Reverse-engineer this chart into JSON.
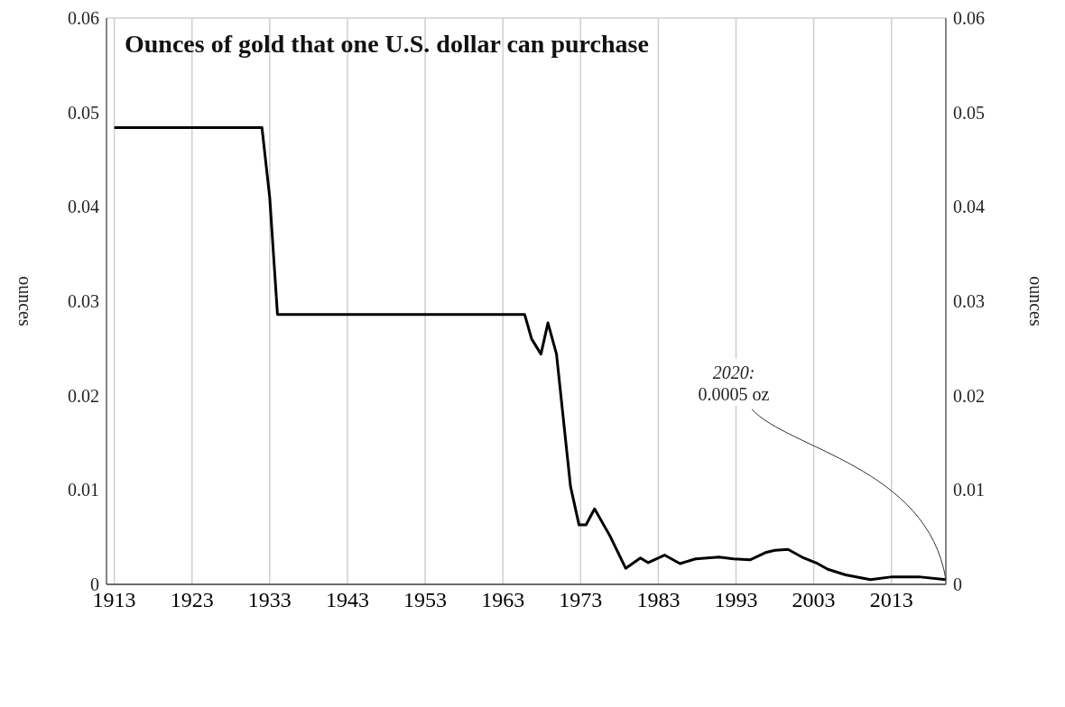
{
  "chart_data": {
    "type": "line",
    "title": "Ounces of gold that one U.S. dollar can purchase",
    "ylabel": "ounces",
    "y2label": "ounces",
    "x": [
      1913,
      1920,
      1932,
      1933,
      1934,
      1940,
      1950,
      1960,
      1965.8,
      1966.7,
      1967.9,
      1968.8,
      1969.9,
      1971.7,
      1972.8,
      1973.7,
      1974.8,
      1976.8,
      1978.8,
      1980.7,
      1981.7,
      1983.8,
      1985.8,
      1987.8,
      1990.8,
      1992.7,
      1994.8,
      1996.9,
      1998,
      1999.7,
      2001.7,
      2003.5,
      2004.8,
      2007.1,
      2010.3,
      2013.1,
      2016.5,
      2020
    ],
    "series": [
      {
        "color": "#000000",
        "values": [
          0.0484,
          0.0484,
          0.0484,
          0.041,
          0.0286,
          0.0286,
          0.0286,
          0.0286,
          0.0286,
          0.026,
          0.0244,
          0.0277,
          0.0244,
          0.0104,
          0.0063,
          0.0063,
          0.008,
          0.0051,
          0.0017,
          0.0028,
          0.0023,
          0.0031,
          0.0022,
          0.0027,
          0.0029,
          0.0027,
          0.0026,
          0.0034,
          0.0036,
          0.0037,
          0.0028,
          0.0022,
          0.0016,
          0.001,
          0.0005,
          0.0008,
          0.0008,
          0.0005
        ]
      }
    ],
    "xlim": [
      1912,
      2020
    ],
    "xticks": [
      1913,
      1923,
      1933,
      1943,
      1953,
      1963,
      1973,
      1983,
      1993,
      2003,
      2013
    ],
    "ylim": [
      0,
      0.06
    ],
    "yticks": [
      0,
      0.01,
      0.02,
      0.03,
      0.04,
      0.05,
      0.06
    ],
    "y2lim": [
      0,
      0.06
    ],
    "y2ticks": [
      0,
      0.01,
      0.02,
      0.03,
      0.04,
      0.05,
      0.06
    ],
    "annotations": [
      {
        "text": "2020:\n0.0005 oz",
        "x": 2020,
        "y": 0.0005
      }
    ],
    "grid": true,
    "legend": false,
    "marker": "none",
    "line_style": "solid"
  }
}
